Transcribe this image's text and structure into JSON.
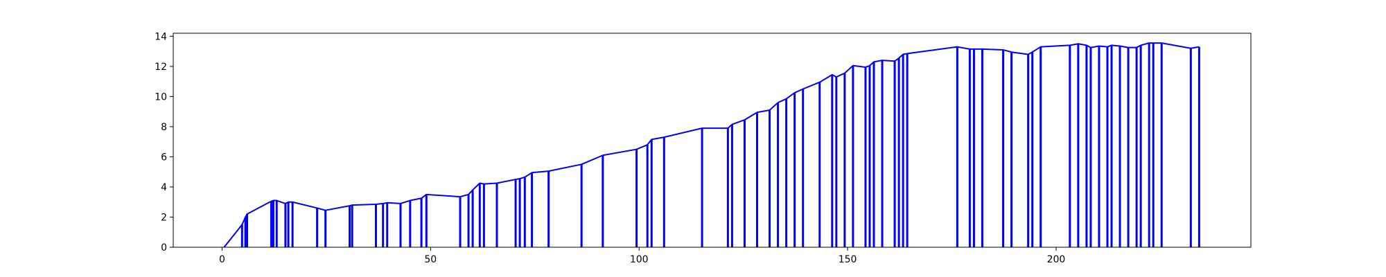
{
  "chart_data": {
    "type": "line",
    "title": "",
    "xlabel": "",
    "ylabel": "",
    "xlim": [
      -11.7,
      246.7
    ],
    "ylim": [
      0,
      14.2
    ],
    "x_ticks": [
      0,
      50,
      100,
      150,
      200
    ],
    "y_ticks": [
      0,
      2,
      4,
      6,
      8,
      10,
      12,
      14
    ],
    "grid": false,
    "legend": "none",
    "series_color": "#0000ff",
    "points": [
      [
        0.5,
        0
      ],
      [
        4.8,
        1.5
      ],
      [
        5.6,
        2.0
      ],
      [
        6.0,
        2.2
      ],
      [
        11.8,
        3.05
      ],
      [
        12.3,
        3.1
      ],
      [
        13.1,
        3.1
      ],
      [
        15.2,
        2.9
      ],
      [
        15.9,
        3.0
      ],
      [
        16.9,
        3.0
      ],
      [
        22.8,
        2.6
      ],
      [
        24.8,
        2.45
      ],
      [
        30.6,
        2.75
      ],
      [
        31.2,
        2.8
      ],
      [
        36.9,
        2.85
      ],
      [
        38.6,
        2.9
      ],
      [
        39.6,
        2.95
      ],
      [
        42.8,
        2.9
      ],
      [
        45.1,
        3.1
      ],
      [
        47.8,
        3.25
      ],
      [
        49.0,
        3.5
      ],
      [
        57.1,
        3.35
      ],
      [
        59.1,
        3.5
      ],
      [
        60.1,
        3.8
      ],
      [
        61.8,
        4.25
      ],
      [
        62.8,
        4.2
      ],
      [
        65.9,
        4.25
      ],
      [
        70.4,
        4.5
      ],
      [
        71.4,
        4.55
      ],
      [
        72.6,
        4.65
      ],
      [
        74.3,
        4.95
      ],
      [
        78.3,
        5.05
      ],
      [
        86.2,
        5.5
      ],
      [
        91.3,
        6.1
      ],
      [
        99.4,
        6.5
      ],
      [
        102.0,
        6.8
      ],
      [
        103.0,
        7.15
      ],
      [
        106.0,
        7.3
      ],
      [
        115.1,
        7.9
      ],
      [
        121.3,
        7.9
      ],
      [
        122.3,
        8.15
      ],
      [
        125.3,
        8.45
      ],
      [
        128.3,
        8.95
      ],
      [
        131.3,
        9.1
      ],
      [
        133.3,
        9.6
      ],
      [
        135.3,
        9.85
      ],
      [
        137.3,
        10.25
      ],
      [
        139.3,
        10.5
      ],
      [
        143.3,
        10.95
      ],
      [
        146.3,
        11.45
      ],
      [
        147.3,
        11.3
      ],
      [
        149.3,
        11.55
      ],
      [
        151.3,
        12.05
      ],
      [
        154.3,
        11.95
      ],
      [
        155.3,
        12.05
      ],
      [
        156.3,
        12.3
      ],
      [
        158.3,
        12.4
      ],
      [
        161.3,
        12.35
      ],
      [
        162.3,
        12.55
      ],
      [
        163.3,
        12.8
      ],
      [
        164.3,
        12.85
      ],
      [
        176.3,
        13.3
      ],
      [
        179.3,
        13.15
      ],
      [
        180.3,
        13.15
      ],
      [
        182.3,
        13.15
      ],
      [
        187.3,
        13.1
      ],
      [
        189.3,
        12.95
      ],
      [
        193.3,
        12.8
      ],
      [
        194.3,
        12.95
      ],
      [
        196.3,
        13.3
      ],
      [
        203.3,
        13.4
      ],
      [
        205.3,
        13.5
      ],
      [
        207.3,
        13.4
      ],
      [
        208.3,
        13.25
      ],
      [
        210.3,
        13.35
      ],
      [
        212.3,
        13.3
      ],
      [
        213.3,
        13.4
      ],
      [
        215.3,
        13.35
      ],
      [
        217.3,
        13.25
      ],
      [
        219.3,
        13.25
      ],
      [
        220.3,
        13.4
      ],
      [
        222.3,
        13.55
      ],
      [
        223.3,
        13.55
      ],
      [
        225.3,
        13.55
      ],
      [
        232.3,
        13.2
      ],
      [
        234.3,
        13.3
      ]
    ],
    "drops": [
      4.8,
      5.6,
      6.0,
      11.8,
      12.3,
      13.1,
      15.2,
      15.9,
      16.9,
      22.8,
      24.8,
      30.6,
      31.2,
      36.9,
      38.6,
      39.6,
      42.8,
      45.1,
      47.8,
      49.0,
      57.1,
      59.1,
      60.1,
      61.8,
      62.8,
      65.9,
      70.4,
      71.4,
      72.6,
      74.3,
      78.3,
      86.2,
      91.3,
      99.4,
      102.0,
      103.0,
      106.0,
      115.1,
      121.3,
      122.3,
      125.3,
      128.3,
      131.3,
      133.3,
      135.3,
      137.3,
      139.3,
      143.3,
      146.3,
      147.3,
      149.3,
      151.3,
      154.3,
      155.3,
      156.3,
      158.3,
      161.3,
      162.3,
      163.3,
      164.3,
      176.3,
      179.3,
      180.3,
      182.3,
      187.3,
      189.3,
      193.3,
      194.3,
      196.3,
      203.3,
      205.3,
      207.3,
      208.3,
      210.3,
      212.3,
      213.3,
      215.3,
      217.3,
      219.3,
      220.3,
      222.3,
      223.3,
      225.3,
      232.3,
      234.3
    ]
  }
}
